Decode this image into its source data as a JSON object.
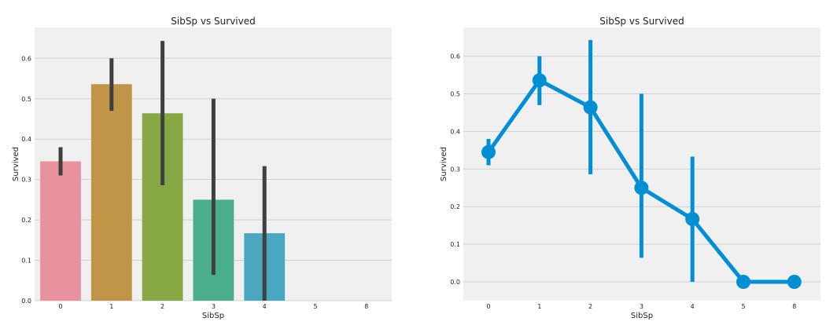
{
  "chart_data": [
    {
      "type": "bar",
      "title": "SibSp vs Survived",
      "xlabel": "SibSp",
      "ylabel": "Survived",
      "categories": [
        "0",
        "1",
        "2",
        "3",
        "4",
        "5",
        "8"
      ],
      "values": [
        0.345,
        0.536,
        0.464,
        0.25,
        0.167,
        0.0,
        0.0
      ],
      "ci_low": [
        0.31,
        0.47,
        0.286,
        0.064,
        0.0,
        0.0,
        0.0
      ],
      "ci_high": [
        0.38,
        0.6,
        0.643,
        0.5,
        0.333,
        0.0,
        0.0
      ],
      "colors": [
        "#e8929f",
        "#c09548",
        "#88a844",
        "#4aae8c",
        "#49a8c0",
        "#7f86d6",
        "#cf77c9"
      ],
      "ylim": [
        0,
        0.65
      ],
      "yticks": [
        "0.0",
        "0.1",
        "0.2",
        "0.3",
        "0.4",
        "0.5",
        "0.6"
      ],
      "grid": true
    },
    {
      "type": "line",
      "title": "SibSp vs Survived",
      "xlabel": "SibSp",
      "ylabel": "Survived",
      "categories": [
        "0",
        "1",
        "2",
        "3",
        "4",
        "5",
        "8"
      ],
      "values": [
        0.345,
        0.536,
        0.464,
        0.25,
        0.167,
        0.0,
        0.0
      ],
      "ci_low": [
        0.31,
        0.47,
        0.286,
        0.064,
        0.0,
        0.0,
        0.0
      ],
      "ci_high": [
        0.38,
        0.6,
        0.643,
        0.5,
        0.333,
        0.0,
        0.0
      ],
      "color": "#008fd5",
      "ylim": [
        -0.05,
        0.65
      ],
      "yticks": [
        "0.0",
        "0.1",
        "0.2",
        "0.3",
        "0.4",
        "0.5",
        "0.6"
      ],
      "grid": true
    }
  ],
  "colors": {
    "plot_background": "#f0f0f0",
    "grid": "#d0d0d0",
    "errorbar": "#3f3f3f"
  }
}
